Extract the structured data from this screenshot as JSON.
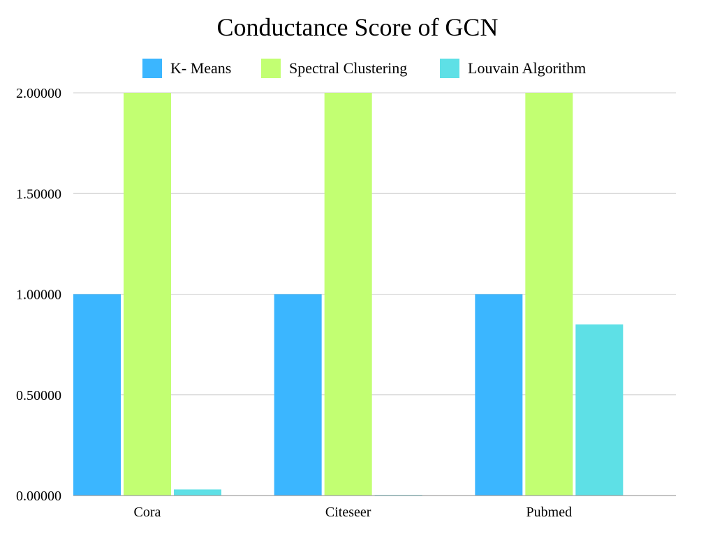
{
  "chart_data": {
    "type": "bar",
    "title": "Conductance Score of GCN",
    "categories": [
      "Cora",
      "Citeseer",
      "Pubmed"
    ],
    "series": [
      {
        "name": "K- Means",
        "color": "#3BB6FF",
        "values": [
          1.0,
          1.0,
          1.0
        ]
      },
      {
        "name": "Spectral Clustering",
        "color": "#C2FF72",
        "values": [
          2.0,
          2.0,
          2.0
        ]
      },
      {
        "name": "Louvain Algorithm",
        "color": "#5EE0E6",
        "values": [
          0.03,
          0.003,
          0.85
        ]
      }
    ],
    "ylim": [
      0,
      2
    ],
    "yticks": [
      "0.00000",
      "0.50000",
      "1.00000",
      "1.50000",
      "2.00000"
    ],
    "xlabel": "",
    "ylabel": "",
    "grid": true,
    "legend_position": "top"
  }
}
